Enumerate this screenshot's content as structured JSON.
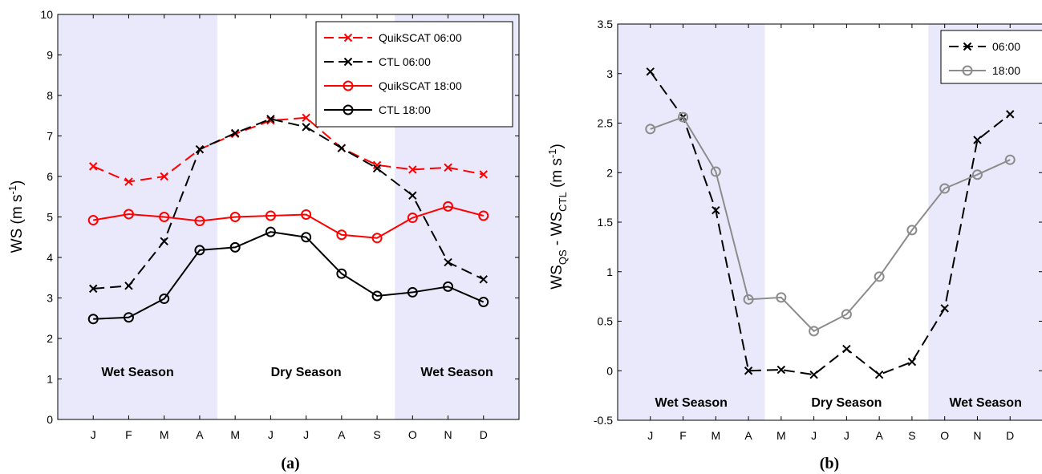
{
  "chart_data": [
    {
      "type": "line",
      "caption": "(a)",
      "ylabel": "WS (m s",
      "ylabel_sup": "-1",
      "ylabel_close": ")",
      "ylim": [
        0,
        10
      ],
      "yticks": [
        "0",
        "1",
        "2",
        "3",
        "4",
        "5",
        "6",
        "7",
        "8",
        "9",
        "10"
      ],
      "categories": [
        "J",
        "F",
        "M",
        "A",
        "M",
        "J",
        "J",
        "A",
        "S",
        "O",
        "N",
        "D"
      ],
      "shaded_seasons": [
        {
          "label": "Wet Season",
          "from": 0,
          "to": 3
        },
        {
          "label": "Dry Season",
          "from": 4,
          "to": 8
        },
        {
          "label": "Wet Season",
          "from": 9,
          "to": 11
        }
      ],
      "legend_position": "top-right",
      "series": [
        {
          "name": "QuikSCAT 06:00",
          "color": "#ff0000",
          "dashed": true,
          "marker": "x",
          "values": [
            6.25,
            5.87,
            6.0,
            6.67,
            7.05,
            7.38,
            7.45,
            6.7,
            6.28,
            6.17,
            6.22,
            6.05
          ]
        },
        {
          "name": "CTL 06:00",
          "color": "#000000",
          "dashed": true,
          "marker": "x",
          "values": [
            3.23,
            3.3,
            4.4,
            6.67,
            7.07,
            7.42,
            7.22,
            6.7,
            6.2,
            5.53,
            3.88,
            3.46
          ]
        },
        {
          "name": "QuikSCAT 18:00",
          "color": "#ff0000",
          "dashed": false,
          "marker": "o",
          "values": [
            4.92,
            5.07,
            5.0,
            4.9,
            5.0,
            5.03,
            5.06,
            4.56,
            4.48,
            4.98,
            5.26,
            5.03
          ]
        },
        {
          "name": "CTL 18:00",
          "color": "#000000",
          "dashed": false,
          "marker": "o",
          "values": [
            2.48,
            2.52,
            2.98,
            4.18,
            4.25,
            4.63,
            4.5,
            3.6,
            3.05,
            3.14,
            3.28,
            2.9
          ]
        }
      ]
    },
    {
      "type": "line",
      "caption": "(b)",
      "ylabel": "WS",
      "ylabel_sub1": "QS",
      "ylabel_mid": " - WS",
      "ylabel_sub2": "CTL",
      "ylabel_unit": " (m s",
      "ylabel_sup": "-1",
      "ylabel_close": ")",
      "ylim": [
        -0.5,
        3.5
      ],
      "yticks": [
        "-0.5",
        "0",
        "0.5",
        "1",
        "1.5",
        "2",
        "2.5",
        "3",
        "3.5"
      ],
      "categories": [
        "J",
        "F",
        "M",
        "A",
        "M",
        "J",
        "J",
        "A",
        "S",
        "O",
        "N",
        "D"
      ],
      "shaded_seasons": [
        {
          "label": "Wet Season",
          "from": 0,
          "to": 3
        },
        {
          "label": "Dry Season",
          "from": 4,
          "to": 8
        },
        {
          "label": "Wet Season",
          "from": 9,
          "to": 11
        }
      ],
      "legend_position": "top-right",
      "series": [
        {
          "name": "06:00",
          "color": "#000000",
          "dashed": true,
          "marker": "x",
          "values": [
            3.02,
            2.56,
            1.62,
            0.0,
            0.01,
            -0.04,
            0.22,
            -0.04,
            0.09,
            0.63,
            2.33,
            2.59
          ]
        },
        {
          "name": "18:00",
          "color": "#8c8c8c",
          "dashed": false,
          "marker": "o",
          "values": [
            2.44,
            2.56,
            2.01,
            0.72,
            0.74,
            0.4,
            0.57,
            0.95,
            1.42,
            1.84,
            1.98,
            2.13
          ]
        }
      ]
    }
  ]
}
